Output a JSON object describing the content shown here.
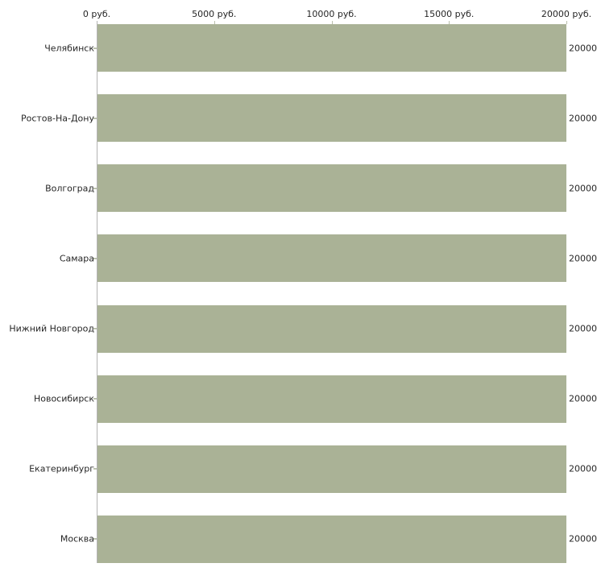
{
  "chart_data": {
    "type": "bar",
    "orientation": "horizontal",
    "title": "",
    "xlabel": "",
    "ylabel": "",
    "unit": "руб.",
    "grid": false,
    "legend": false,
    "xlim": [
      0,
      20000
    ],
    "x_tick_labels": [
      "0 руб.",
      "5000 руб.",
      "10000 руб.",
      "15000 руб.",
      "20000 руб."
    ],
    "categories": [
      "Челябинск",
      "Ростов-На-Дону",
      "Волгоград",
      "Самара",
      "Нижний Новгород",
      "Новосибирск",
      "Екатеринбург",
      "Москва"
    ],
    "values": [
      20000,
      20000,
      20000,
      20000,
      20000,
      20000,
      20000,
      20000
    ],
    "bar_labels": [
      "20000",
      "20000",
      "20000",
      "20000",
      "20000",
      "20000",
      "20000",
      "20000"
    ],
    "bar_color": "#aab296",
    "axis_color": "#b3b3b3",
    "text_color": "#262626"
  }
}
